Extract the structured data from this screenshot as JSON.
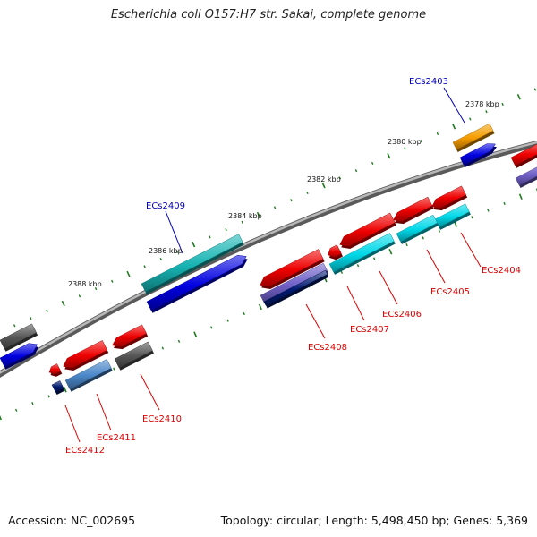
{
  "title": "Escherichia coli O157:H7 str. Sakai, complete genome",
  "footer": {
    "accession": "Accession: NC_002695",
    "summary": "Topology: circular; Length: 5,498,450 bp; Genes: 5,369"
  },
  "colors": {
    "backbone": "#888888",
    "tick": "#1f7a1f",
    "label_forward": "#0000bb",
    "label_reverse": "#dd0000",
    "red": "#ee0000",
    "blue": "#0000e0",
    "cyan": "#00d8e8",
    "teal": "#17b3b3",
    "gray": "#555555",
    "orange": "#f59c00",
    "purple": "#7060c8",
    "steelblue": "#4a86c8",
    "navy": "#001a70"
  },
  "ruler_labels": [
    "2378 kbp",
    "2380 kbp",
    "2382 kbp",
    "2384 kbp",
    "2386 kbp",
    "2388 kbp"
  ],
  "gene_labels": [
    "ECs2403",
    "ECs2409",
    "ECs2404",
    "ECs2405",
    "ECs2406",
    "ECs2407",
    "ECs2408",
    "ECs2410",
    "ECs2411",
    "ECs2412"
  ]
}
